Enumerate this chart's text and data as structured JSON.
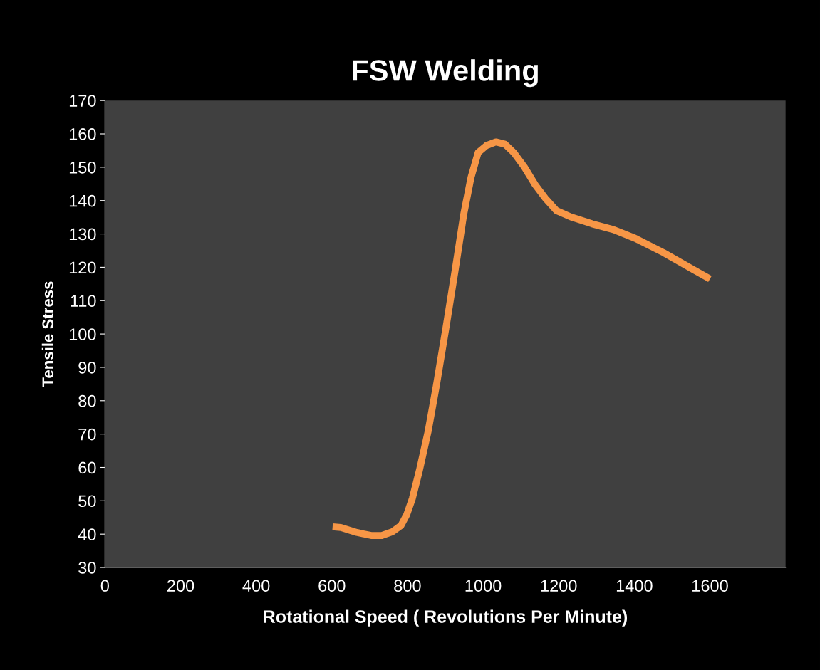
{
  "chart_data": {
    "type": "line",
    "title": "FSW Welding",
    "xlabel": "Rotational Speed ( Revolutions Per Minute)",
    "ylabel": "Tensile Stress",
    "x": [
      602,
      624,
      666,
      704,
      732,
      760,
      783,
      798,
      813,
      832,
      855,
      877,
      902,
      926,
      949,
      968,
      987,
      1009,
      1034,
      1058,
      1081,
      1109,
      1138,
      1166,
      1194,
      1232,
      1289,
      1345,
      1402,
      1477,
      1553,
      1600
    ],
    "series": [
      {
        "color": "#f79646",
        "values": [
          42.2,
          42,
          40.5,
          39.6,
          39.6,
          40.7,
          42.6,
          45.8,
          50.7,
          59.3,
          71,
          84.9,
          102,
          119,
          136,
          146.9,
          154.4,
          156.5,
          157.6,
          156.9,
          154.4,
          150.1,
          144.7,
          140.5,
          137,
          135.1,
          133,
          131.3,
          128.7,
          124.4,
          119.5,
          116.5
        ]
      }
    ],
    "xlim": [
      0,
      1800
    ],
    "xticks": [
      0,
      200,
      400,
      600,
      800,
      1000,
      1200,
      1400,
      1600
    ],
    "ylim": [
      30,
      170
    ],
    "yticks": [
      30,
      40,
      50,
      60,
      70,
      80,
      90,
      100,
      110,
      120,
      130,
      140,
      150,
      160,
      170
    ],
    "grid": false,
    "legend": false,
    "marker": "none",
    "line_style": "solid"
  }
}
